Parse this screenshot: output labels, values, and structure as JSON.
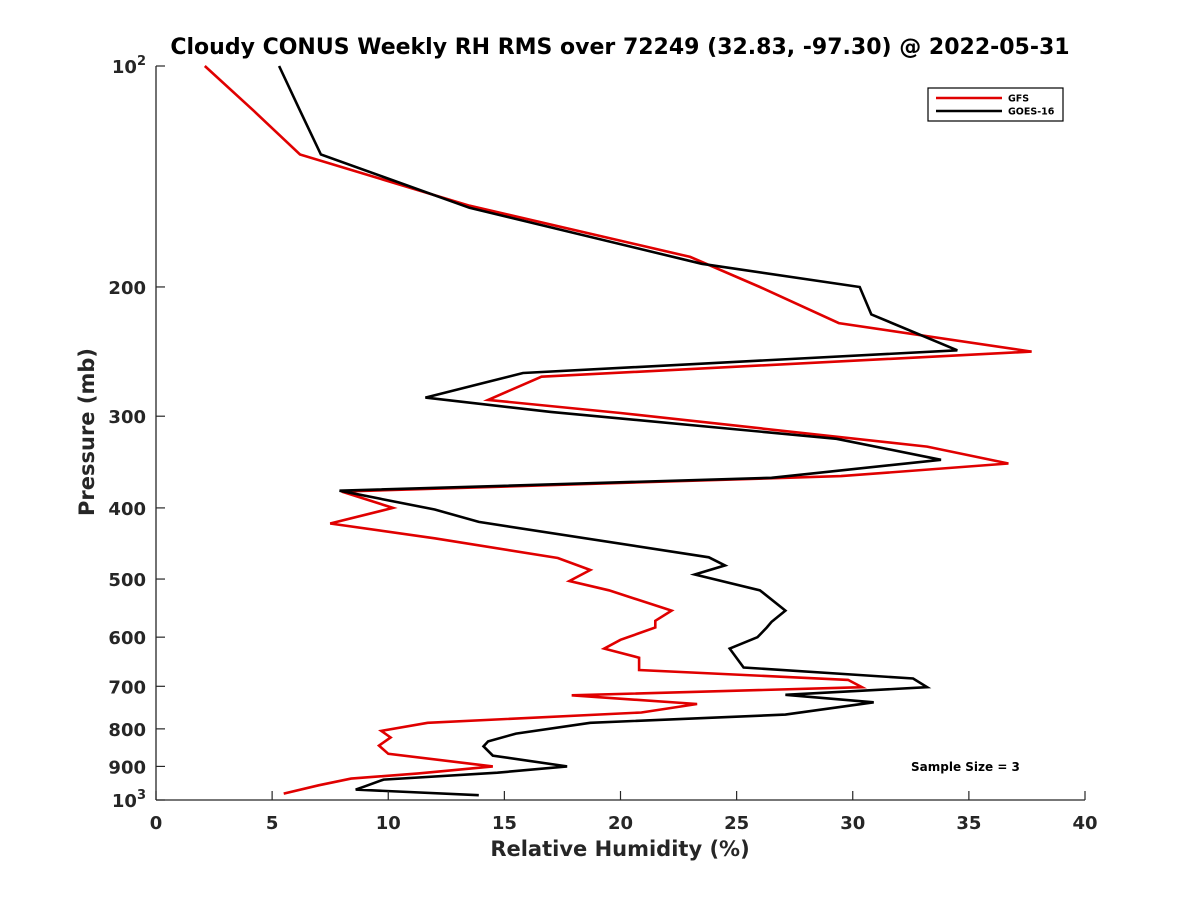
{
  "chart_data": {
    "type": "line",
    "title": "Cloudy CONUS Weekly RH RMS over 72249 (32.83, -97.30) @ 2022-05-31",
    "xlabel": "Relative Humidity (%)",
    "ylabel": "Pressure (mb)",
    "xlim": [
      0,
      40
    ],
    "ylim": [
      100,
      1000
    ],
    "yscale": "log",
    "y_reversed": true,
    "grid": false,
    "legend_position": "top-right",
    "x_ticks": [
      0,
      5,
      10,
      15,
      20,
      25,
      30,
      35,
      40
    ],
    "x_tick_labels": [
      "0",
      "5",
      "10",
      "15",
      "20",
      "25",
      "30",
      "35",
      "40"
    ],
    "y_ticks": [
      100,
      200,
      300,
      400,
      500,
      600,
      700,
      800,
      900,
      1000
    ],
    "y_tick_labels": [
      {
        "base": "10",
        "exp": "2"
      },
      {
        "base": "200"
      },
      {
        "base": "300"
      },
      {
        "base": "400"
      },
      {
        "base": "500"
      },
      {
        "base": "600"
      },
      {
        "base": "700"
      },
      {
        "base": "800"
      },
      {
        "base": "900"
      },
      {
        "base": "10",
        "exp": "3"
      }
    ],
    "annotation": "Sample Size = 3",
    "series": [
      {
        "name": "GFS",
        "color": "#e00000",
        "points": [
          [
            2.1,
            100
          ],
          [
            4.2,
            115
          ],
          [
            6.2,
            132
          ],
          [
            13.5,
            155
          ],
          [
            23.0,
            182
          ],
          [
            26.0,
            200
          ],
          [
            29.4,
            224
          ],
          [
            37.7,
            245
          ],
          [
            16.6,
            265
          ],
          [
            14.3,
            285
          ],
          [
            20.0,
            297
          ],
          [
            33.2,
            330
          ],
          [
            36.7,
            348
          ],
          [
            29.5,
            362
          ],
          [
            8.0,
            380
          ],
          [
            10.2,
            400
          ],
          [
            7.5,
            420
          ],
          [
            12.0,
            440
          ],
          [
            17.3,
            468
          ],
          [
            18.7,
            486
          ],
          [
            17.8,
            503
          ],
          [
            19.5,
            518
          ],
          [
            22.2,
            552
          ],
          [
            21.5,
            570
          ],
          [
            21.5,
            582
          ],
          [
            20.0,
            605
          ],
          [
            19.3,
            622
          ],
          [
            20.8,
            640
          ],
          [
            20.8,
            665
          ],
          [
            29.8,
            686
          ],
          [
            30.4,
            702
          ],
          [
            17.9,
            720
          ],
          [
            23.3,
            740
          ],
          [
            20.9,
            760
          ],
          [
            11.7,
            785
          ],
          [
            9.7,
            805
          ],
          [
            10.1,
            822
          ],
          [
            9.6,
            843
          ],
          [
            10.0,
            865
          ],
          [
            14.5,
            900
          ],
          [
            11.3,
            920
          ],
          [
            8.4,
            935
          ],
          [
            7.0,
            955
          ],
          [
            5.5,
            980
          ]
        ]
      },
      {
        "name": "GOES-16",
        "color": "#000000",
        "points": [
          [
            5.3,
            100
          ],
          [
            6.2,
            115
          ],
          [
            7.1,
            132
          ],
          [
            13.5,
            156
          ],
          [
            23.5,
            186
          ],
          [
            30.3,
            200
          ],
          [
            30.8,
            218
          ],
          [
            34.5,
            244
          ],
          [
            15.8,
            262
          ],
          [
            11.6,
            283
          ],
          [
            17.0,
            296
          ],
          [
            29.3,
            322
          ],
          [
            33.8,
            344
          ],
          [
            26.5,
            364
          ],
          [
            7.9,
            379
          ],
          [
            12.0,
            402
          ],
          [
            13.9,
            418
          ],
          [
            23.8,
            467
          ],
          [
            24.5,
            479
          ],
          [
            23.2,
            493
          ],
          [
            26.0,
            518
          ],
          [
            27.1,
            552
          ],
          [
            26.5,
            572
          ],
          [
            26.3,
            582
          ],
          [
            25.9,
            600
          ],
          [
            24.7,
            622
          ],
          [
            25.3,
            660
          ],
          [
            32.6,
            683
          ],
          [
            33.2,
            702
          ],
          [
            27.1,
            719
          ],
          [
            30.9,
            736
          ],
          [
            27.1,
            765
          ],
          [
            18.7,
            785
          ],
          [
            15.5,
            812
          ],
          [
            14.3,
            832
          ],
          [
            14.1,
            845
          ],
          [
            14.5,
            870
          ],
          [
            17.7,
            900
          ],
          [
            14.7,
            918
          ],
          [
            9.8,
            938
          ],
          [
            9.0,
            958
          ],
          [
            8.6,
            968
          ],
          [
            13.9,
            985
          ]
        ]
      }
    ]
  }
}
